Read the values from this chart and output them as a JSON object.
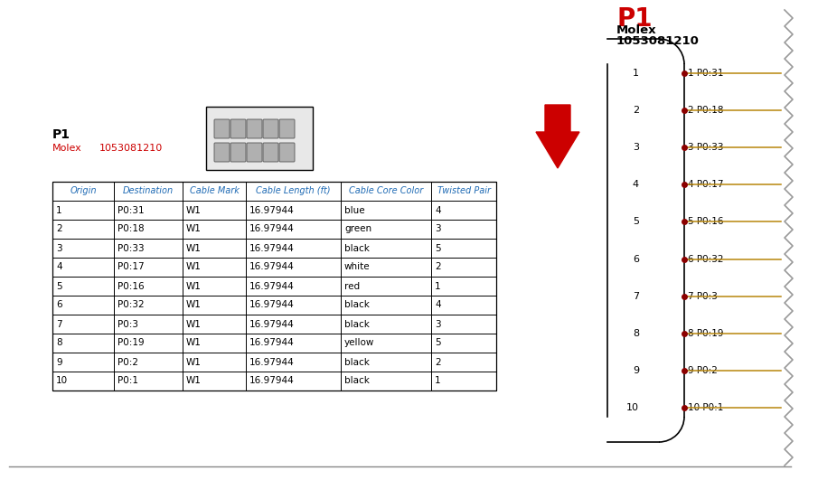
{
  "title_left": "P1",
  "subtitle_left1": "Molex",
  "subtitle_left2": "1053081210",
  "subtitle_left2_color": "#cc0000",
  "subtitle_left1_color": "#cc0000",
  "header": [
    "Origin",
    "Destination",
    "Cable Mark",
    "Cable Length (ft)",
    "Cable Core Color",
    "Twisted Pair"
  ],
  "rows": [
    [
      "1",
      "P0:31",
      "W1",
      "16.97944",
      "blue",
      "4"
    ],
    [
      "2",
      "P0:18",
      "W1",
      "16.97944",
      "green",
      "3"
    ],
    [
      "3",
      "P0:33",
      "W1",
      "16.97944",
      "black",
      "5"
    ],
    [
      "4",
      "P0:17",
      "W1",
      "16.97944",
      "white",
      "2"
    ],
    [
      "5",
      "P0:16",
      "W1",
      "16.97944",
      "red",
      "1"
    ],
    [
      "6",
      "P0:32",
      "W1",
      "16.97944",
      "black",
      "4"
    ],
    [
      "7",
      "P0:3",
      "W1",
      "16.97944",
      "black",
      "3"
    ],
    [
      "8",
      "P0:19",
      "W1",
      "16.97944",
      "yellow",
      "5"
    ],
    [
      "9",
      "P0:2",
      "W1",
      "16.97944",
      "black",
      "2"
    ],
    [
      "10",
      "P0:1",
      "W1",
      "16.97944",
      "black",
      "1"
    ]
  ],
  "connector_pins": [
    "P0:31",
    "P0:18",
    "P0:33",
    "P0:17",
    "P0:16",
    "P0:32",
    "P0:3",
    "P0:19",
    "P0:2",
    "P0:1"
  ],
  "header_color": "#1e6ab4",
  "border_color": "#000000",
  "line_color": "#b8860b",
  "dot_color": "#8b0000",
  "arrow_color": "#cc0000",
  "background_color": "#ffffff",
  "zigzag_color": "#999999"
}
